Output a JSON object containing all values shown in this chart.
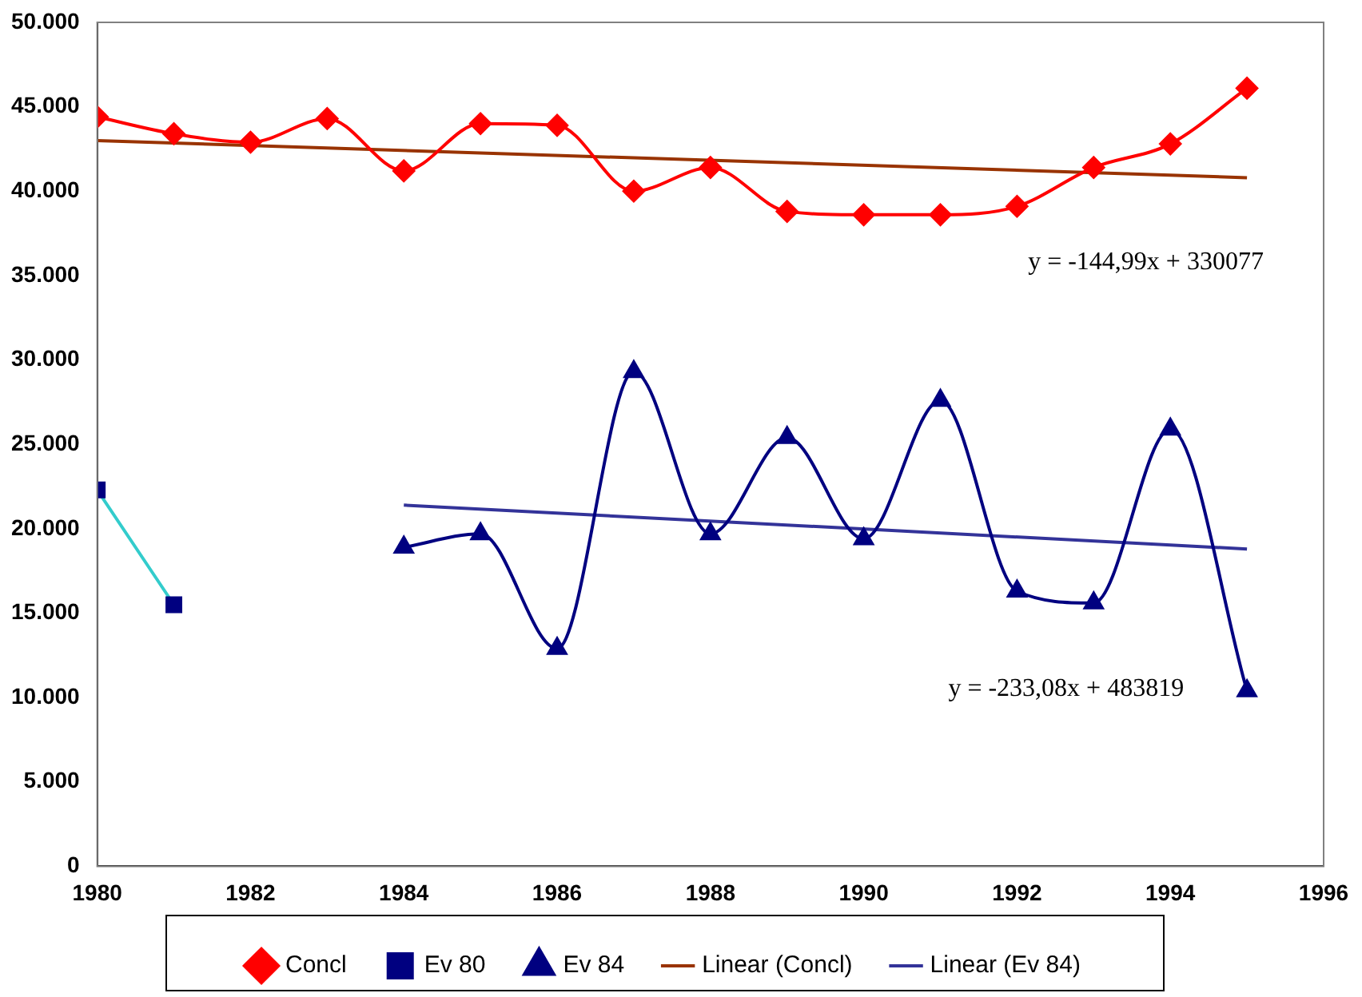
{
  "chart_data": {
    "type": "line",
    "x": [
      1980,
      1981,
      1982,
      1983,
      1984,
      1985,
      1986,
      1987,
      1988,
      1989,
      1990,
      1991,
      1992,
      1993,
      1994,
      1995
    ],
    "series": [
      {
        "name": "Concl",
        "color": "#ff0000",
        "marker": "diamond",
        "values": [
          44400,
          43400,
          42900,
          44300,
          41200,
          44000,
          43900,
          40000,
          41400,
          38800,
          38600,
          38600,
          39100,
          41400,
          42800,
          46100
        ]
      },
      {
        "name": "Ev 80",
        "color": "#33cccc",
        "colors": [
          "#000080",
          "#000080"
        ],
        "marker": "square",
        "x": [
          1980,
          1981
        ],
        "values": [
          22300,
          15500
        ]
      },
      {
        "name": "Ev 84",
        "color": "#000080",
        "marker": "triangle",
        "x": [
          1984,
          1985,
          1986,
          1987,
          1988,
          1989,
          1990,
          1991,
          1992,
          1993,
          1994,
          1995
        ],
        "values": [
          18900,
          19700,
          12900,
          29300,
          19700,
          25400,
          19400,
          27600,
          16300,
          15600,
          25900,
          10400
        ]
      },
      {
        "name": "Linear (Concl)",
        "color": "#993300",
        "marker": "none",
        "x": [
          1980,
          1995
        ],
        "values": [
          43000,
          40800
        ]
      },
      {
        "name": "Linear (Ev 84)",
        "color": "#333399",
        "marker": "none",
        "x": [
          1984,
          1995
        ],
        "values": [
          21400,
          18800
        ]
      }
    ],
    "xlim": [
      1980,
      1996
    ],
    "xticks": [
      1980,
      1982,
      1984,
      1986,
      1988,
      1990,
      1992,
      1994,
      1996
    ],
    "ylim": [
      0,
      50000
    ],
    "yticks": [
      {
        "value": 0,
        "label": "0"
      },
      {
        "value": 5000,
        "label": "5.000"
      },
      {
        "value": 10000,
        "label": "10.000"
      },
      {
        "value": 15000,
        "label": "15.000"
      },
      {
        "value": 20000,
        "label": "20.000"
      },
      {
        "value": 25000,
        "label": "25.000"
      },
      {
        "value": 30000,
        "label": "30.000"
      },
      {
        "value": 35000,
        "label": "35.000"
      },
      {
        "value": 40000,
        "label": "40.000"
      },
      {
        "value": 45000,
        "label": "45.000"
      },
      {
        "value": 50000,
        "label": "50.000"
      }
    ],
    "grid": false,
    "legend": "bottom",
    "annotations": [
      "y = -144,99x + 330077",
      "y = -233,08x + 483819"
    ]
  }
}
